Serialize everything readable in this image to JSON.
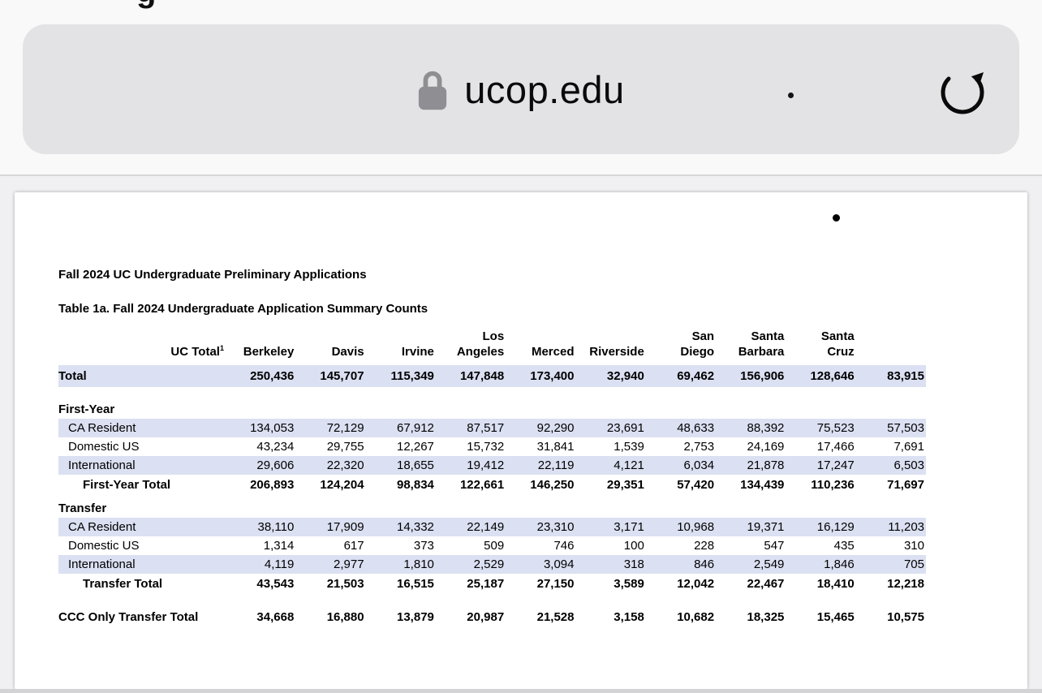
{
  "browser": {
    "tab_fragment": "g",
    "address_bar": {
      "url": "ucop.edu"
    },
    "icons": {
      "lock": "lock-icon",
      "reload": "reload-icon"
    }
  },
  "document": {
    "title": "Fall 2024 UC Undergraduate Preliminary Applications",
    "table_caption": "Table 1a. Fall 2024 Undergraduate Application Summary Counts"
  },
  "table": {
    "columns": [
      {
        "lines": [
          "UC Total"
        ],
        "sup": "1"
      },
      {
        "lines": [
          "Berkeley"
        ]
      },
      {
        "lines": [
          "Davis"
        ]
      },
      {
        "lines": [
          "Irvine"
        ]
      },
      {
        "lines": [
          "Los",
          "Angeles"
        ]
      },
      {
        "lines": [
          "Merced"
        ]
      },
      {
        "lines": [
          "Riverside"
        ]
      },
      {
        "lines": [
          "San",
          "Diego"
        ]
      },
      {
        "lines": [
          "Santa",
          "Barbara"
        ]
      },
      {
        "lines": [
          "Santa",
          "Cruz"
        ]
      }
    ],
    "rows": [
      {
        "type": "total",
        "label": "Total",
        "band": true,
        "values": [
          "250,436",
          "145,707",
          "115,349",
          "147,848",
          "173,400",
          "32,940",
          "69,462",
          "156,906",
          "128,646",
          "83,915"
        ]
      },
      {
        "type": "spacer",
        "h": 16
      },
      {
        "type": "section",
        "label": "First-Year"
      },
      {
        "type": "data",
        "label": "CA Resident",
        "band": true,
        "values": [
          "134,053",
          "72,129",
          "67,912",
          "87,517",
          "92,290",
          "23,691",
          "48,633",
          "88,392",
          "75,523",
          "57,503"
        ]
      },
      {
        "type": "data",
        "label": "Domestic US",
        "band": false,
        "values": [
          "43,234",
          "29,755",
          "12,267",
          "15,732",
          "31,841",
          "1,539",
          "2,753",
          "24,169",
          "17,466",
          "7,691"
        ]
      },
      {
        "type": "data",
        "label": "International",
        "band": true,
        "values": [
          "29,606",
          "22,320",
          "18,655",
          "19,412",
          "22,119",
          "4,121",
          "6,034",
          "21,878",
          "17,247",
          "6,503"
        ]
      },
      {
        "type": "subtotal",
        "label": "First-Year Total",
        "values": [
          "206,893",
          "124,204",
          "98,834",
          "122,661",
          "146,250",
          "29,351",
          "57,420",
          "134,439",
          "110,236",
          "71,697"
        ]
      },
      {
        "type": "spacer",
        "h": 5
      },
      {
        "type": "section",
        "label": "Transfer"
      },
      {
        "type": "data",
        "label": "CA Resident",
        "band": true,
        "values": [
          "38,110",
          "17,909",
          "14,332",
          "22,149",
          "23,310",
          "3,171",
          "10,968",
          "19,371",
          "16,129",
          "11,203"
        ]
      },
      {
        "type": "data",
        "label": "Domestic US",
        "band": false,
        "values": [
          "1,314",
          "617",
          "373",
          "509",
          "746",
          "100",
          "228",
          "547",
          "435",
          "310"
        ]
      },
      {
        "type": "data",
        "label": "International",
        "band": true,
        "values": [
          "4,119",
          "2,977",
          "1,810",
          "2,529",
          "3,094",
          "318",
          "846",
          "2,549",
          "1,846",
          "705"
        ]
      },
      {
        "type": "subtotal",
        "label": "Transfer Total",
        "values": [
          "43,543",
          "21,503",
          "16,515",
          "25,187",
          "27,150",
          "3,589",
          "12,042",
          "22,467",
          "18,410",
          "12,218"
        ]
      },
      {
        "type": "spacer",
        "h": 17
      },
      {
        "type": "grandtotal",
        "label": "CCC Only Transfer Total",
        "values": [
          "34,668",
          "16,880",
          "13,879",
          "20,987",
          "21,528",
          "3,158",
          "10,682",
          "18,325",
          "15,465",
          "10,575"
        ]
      }
    ]
  },
  "colors": {
    "band": "#dbe0f2",
    "address_pill": "#e3e3e5",
    "chrome_bg": "#f9f9f9",
    "content_bg": "#f0f0f2",
    "lock_gray": "#8e8e93"
  }
}
